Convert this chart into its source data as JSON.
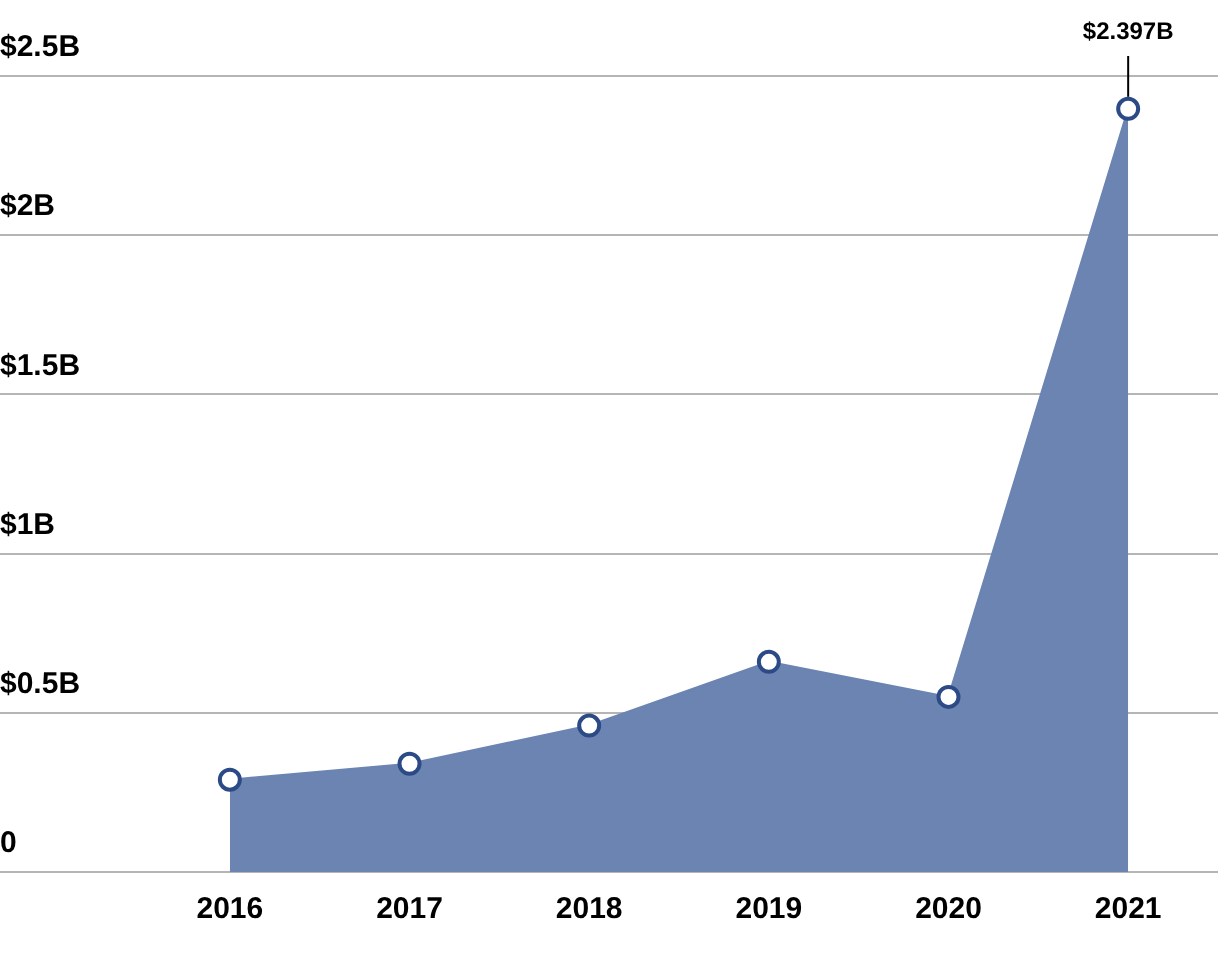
{
  "chart_data": {
    "type": "area",
    "categories": [
      "2016",
      "2017",
      "2018",
      "2019",
      "2020",
      "2021"
    ],
    "series": [
      {
        "color": "#6b84b2",
        "values": [
          0.29,
          0.34,
          0.46,
          0.66,
          0.55,
          2.397
        ],
        "value_labels": [
          null,
          null,
          null,
          null,
          null,
          "$2.397B"
        ]
      }
    ],
    "ylim": [
      0,
      2.5
    ],
    "yticks": [
      0,
      {
        "value": 0.5,
        "label": "$0.5B"
      },
      {
        "value": 1,
        "label": "$1B"
      },
      {
        "value": 1.5,
        "label": "$1.5B"
      },
      {
        "value": 2,
        "label": "$2B"
      },
      {
        "value": 2.5,
        "label": "$2.5B"
      }
    ],
    "grid": "y",
    "legend": false,
    "marker": "circle"
  }
}
